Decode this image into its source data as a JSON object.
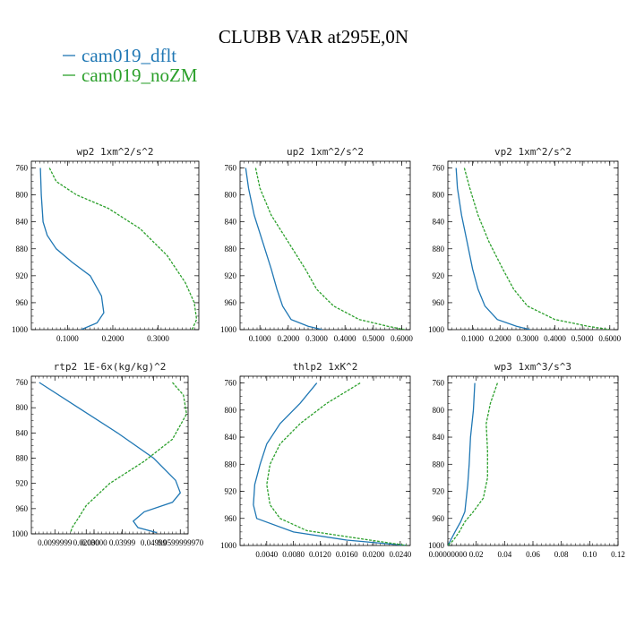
{
  "figure": {
    "title": "CLUBB VAR at295E,0N",
    "legend": [
      {
        "label": "cam019_dflt",
        "color": "#1f77b4"
      },
      {
        "label": "cam019_noZM",
        "color": "#2ca02c"
      }
    ]
  },
  "chart_data": [
    {
      "type": "line",
      "title": "wp2  1xm^2/s^2",
      "ylim": [
        1000,
        750
      ],
      "yticks": [
        760,
        800,
        840,
        880,
        920,
        960,
        1000
      ],
      "xlim": [
        0.02,
        0.39
      ],
      "xticks": [
        0.1,
        0.2,
        0.3
      ],
      "xtick_labels": [
        "0.1000",
        "0.2000",
        "0.3000"
      ],
      "series": [
        {
          "name": "cam019_dflt",
          "color": "#1f77b4",
          "dashed": false,
          "x": [
            0.04,
            0.042,
            0.046,
            0.055,
            0.075,
            0.11,
            0.15,
            0.175,
            0.18,
            0.165,
            0.13
          ],
          "y": [
            760,
            800,
            840,
            860,
            880,
            900,
            920,
            950,
            975,
            990,
            1000
          ]
        },
        {
          "name": "cam019_noZM",
          "color": "#2ca02c",
          "dashed": true,
          "x": [
            0.06,
            0.075,
            0.12,
            0.19,
            0.26,
            0.32,
            0.36,
            0.38,
            0.385,
            0.375
          ],
          "y": [
            760,
            780,
            800,
            820,
            850,
            890,
            930,
            960,
            985,
            1000
          ]
        }
      ]
    },
    {
      "type": "line",
      "title": "up2  1xm^2/s^2",
      "ylim": [
        1000,
        750
      ],
      "yticks": [
        760,
        800,
        840,
        880,
        920,
        960,
        1000
      ],
      "xlim": [
        0.03,
        0.63
      ],
      "xticks": [
        0.1,
        0.2,
        0.3,
        0.4,
        0.5,
        0.6
      ],
      "xtick_labels": [
        "0.1000",
        "0.2000",
        "0.3000",
        "0.4000",
        "0.5000",
        "0.6000"
      ],
      "series": [
        {
          "name": "cam019_dflt",
          "color": "#1f77b4",
          "dashed": false,
          "x": [
            0.05,
            0.06,
            0.08,
            0.11,
            0.14,
            0.16,
            0.18,
            0.21,
            0.27,
            0.32
          ],
          "y": [
            760,
            790,
            830,
            870,
            910,
            940,
            965,
            985,
            995,
            1000
          ]
        },
        {
          "name": "cam019_noZM",
          "color": "#2ca02c",
          "dashed": true,
          "x": [
            0.085,
            0.1,
            0.14,
            0.2,
            0.26,
            0.3,
            0.36,
            0.45,
            0.55,
            0.61
          ],
          "y": [
            760,
            790,
            830,
            870,
            910,
            940,
            965,
            985,
            995,
            1000
          ]
        }
      ]
    },
    {
      "type": "line",
      "title": "vp2  1xm^2/s^2",
      "ylim": [
        1000,
        750
      ],
      "yticks": [
        760,
        800,
        840,
        880,
        920,
        960,
        1000
      ],
      "xlim": [
        0.01,
        0.63
      ],
      "xticks": [
        0.1,
        0.2,
        0.3,
        0.4,
        0.5,
        0.6
      ],
      "xtick_labels": [
        "0.1000",
        "0.2000",
        "0.3000",
        "0.4000",
        "0.5000",
        "0.6000"
      ],
      "series": [
        {
          "name": "cam019_dflt",
          "color": "#1f77b4",
          "dashed": false,
          "x": [
            0.04,
            0.045,
            0.06,
            0.08,
            0.1,
            0.12,
            0.145,
            0.19,
            0.26,
            0.31
          ],
          "y": [
            760,
            790,
            830,
            870,
            910,
            940,
            965,
            985,
            995,
            1000
          ]
        },
        {
          "name": "cam019_noZM",
          "color": "#2ca02c",
          "dashed": true,
          "x": [
            0.07,
            0.09,
            0.12,
            0.16,
            0.21,
            0.25,
            0.3,
            0.4,
            0.52,
            0.6
          ],
          "y": [
            760,
            790,
            830,
            870,
            910,
            940,
            965,
            985,
            995,
            1000
          ]
        }
      ]
    },
    {
      "type": "line",
      "title": "rtp2  1E-6x(kg/kg)^2",
      "ylim": [
        1000,
        750
      ],
      "yticks": [
        760,
        800,
        840,
        880,
        920,
        960,
        1000
      ],
      "xlim": [
        0.0,
        1.0
      ],
      "xticks": [
        0.15,
        0.35,
        0.4,
        0.58,
        0.78,
        0.95
      ],
      "xtick_labels": [
        "0.0099999",
        "0.02000",
        "0.03000",
        "0.03999",
        "0.04999",
        "0.0599999970"
      ],
      "series": [
        {
          "name": "cam019_dflt",
          "color": "#1f77b4",
          "dashed": false,
          "x": [
            0.05,
            0.3,
            0.55,
            0.78,
            0.92,
            0.95,
            0.9,
            0.72,
            0.65,
            0.68,
            0.8
          ],
          "y": [
            760,
            800,
            840,
            880,
            915,
            935,
            950,
            965,
            980,
            990,
            998
          ]
        },
        {
          "name": "cam019_noZM",
          "color": "#2ca02c",
          "dashed": true,
          "x": [
            0.9,
            0.97,
            0.99,
            0.9,
            0.72,
            0.5,
            0.35,
            0.3,
            0.26,
            0.25
          ],
          "y": [
            760,
            780,
            810,
            850,
            885,
            920,
            955,
            975,
            990,
            998
          ]
        }
      ]
    },
    {
      "type": "line",
      "title": "thlp2  1xK^2",
      "ylim": [
        1000,
        750
      ],
      "yticks": [
        760,
        800,
        840,
        880,
        920,
        960,
        1000
      ],
      "xlim": [
        0.0,
        0.0255
      ],
      "xticks": [
        0.004,
        0.008,
        0.012,
        0.016,
        0.02,
        0.024
      ],
      "xtick_labels": [
        "0.0040",
        "0.0080",
        "0.0120",
        "0.0160",
        "0.0200",
        "0.0240"
      ],
      "series": [
        {
          "name": "cam019_dflt",
          "color": "#1f77b4",
          "dashed": false,
          "x": [
            0.0115,
            0.009,
            0.006,
            0.004,
            0.003,
            0.0022,
            0.002,
            0.0025,
            0.008,
            0.016,
            0.025
          ],
          "y": [
            760,
            790,
            820,
            850,
            880,
            910,
            940,
            960,
            980,
            992,
            1000
          ]
        },
        {
          "name": "cam019_noZM",
          "color": "#2ca02c",
          "dashed": true,
          "x": [
            0.018,
            0.013,
            0.009,
            0.006,
            0.0045,
            0.004,
            0.0045,
            0.006,
            0.01,
            0.018,
            0.025
          ],
          "y": [
            760,
            790,
            820,
            850,
            880,
            910,
            940,
            960,
            978,
            990,
            1000
          ]
        }
      ]
    },
    {
      "type": "line",
      "title": "wp3  1xm^3/s^3",
      "ylim": [
        1000,
        750
      ],
      "yticks": [
        760,
        800,
        840,
        880,
        920,
        960,
        1000
      ],
      "xlim": [
        0.0,
        0.12
      ],
      "xticks": [
        0.0,
        0.02,
        0.04,
        0.06,
        0.08,
        0.1,
        0.12
      ],
      "xtick_labels": [
        "0.00000000",
        "0.02",
        "0.04",
        "0.06",
        "0.08",
        "0.10",
        "0.12"
      ],
      "series": [
        {
          "name": "cam019_dflt",
          "color": "#1f77b4",
          "dashed": false,
          "x": [
            0.019,
            0.018,
            0.016,
            0.015,
            0.014,
            0.013,
            0.012,
            0.009,
            0.005,
            0.002,
            0.0
          ],
          "y": [
            760,
            800,
            840,
            880,
            910,
            930,
            950,
            965,
            980,
            992,
            1000
          ]
        },
        {
          "name": "cam019_noZM",
          "color": "#2ca02c",
          "dashed": true,
          "x": [
            0.035,
            0.03,
            0.027,
            0.028,
            0.028,
            0.025,
            0.018,
            0.012,
            0.008,
            0.004,
            0.0
          ],
          "y": [
            760,
            790,
            820,
            860,
            900,
            930,
            950,
            965,
            980,
            992,
            1000
          ]
        }
      ]
    }
  ]
}
